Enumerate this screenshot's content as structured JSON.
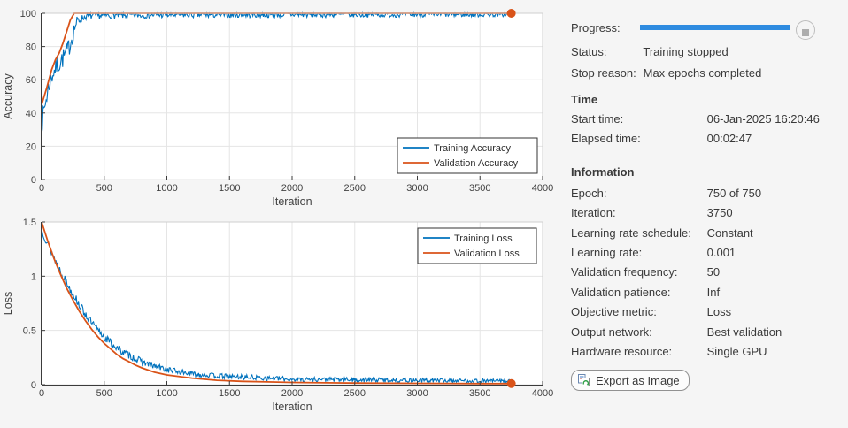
{
  "colors": {
    "matlab_blue": "#0072BD",
    "matlab_orange": "#D95319",
    "progress_blue": "#2E8BE0",
    "grid": "#e5e5e5",
    "axis_dark": "#3b3b3b",
    "axis_light": "#cfcfcf",
    "tick_text": "#424242"
  },
  "chart_data": [
    {
      "type": "line",
      "title": "",
      "xlabel": "Iteration",
      "ylabel": "Accuracy",
      "xlim": [
        0,
        4000
      ],
      "ylim": [
        0,
        100
      ],
      "xticks": [
        0,
        500,
        1000,
        1500,
        2000,
        2500,
        3000,
        3500,
        4000
      ],
      "yticks": [
        0,
        20,
        40,
        60,
        80,
        100
      ],
      "grid": true,
      "legend": {
        "position": "bottom-right",
        "entries": [
          "Training Accuracy",
          "Validation Accuracy"
        ]
      },
      "series": [
        {
          "name": "Training Accuracy",
          "color": "#0072BD",
          "style": "noisy",
          "end_marker": false,
          "points": [
            [
              0,
              33
            ],
            [
              30,
              46
            ],
            [
              60,
              57
            ],
            [
              90,
              64
            ],
            [
              120,
              68
            ],
            [
              150,
              71
            ],
            [
              180,
              74
            ],
            [
              210,
              78
            ],
            [
              240,
              85
            ],
            [
              270,
              93
            ],
            [
              300,
              96
            ],
            [
              350,
              98
            ],
            [
              400,
              98.5
            ],
            [
              500,
              98.6
            ],
            [
              700,
              98.8
            ],
            [
              1000,
              99
            ],
            [
              1500,
              99.1
            ],
            [
              2000,
              99.2
            ],
            [
              2500,
              99.2
            ],
            [
              3000,
              99.3
            ],
            [
              3500,
              99.3
            ],
            [
              3750,
              99.4
            ]
          ],
          "noise": [
            [
              0,
              6
            ],
            [
              240,
              6
            ],
            [
              330,
              2
            ],
            [
              3750,
              1.5
            ]
          ]
        },
        {
          "name": "Validation Accuracy",
          "color": "#D95319",
          "style": "smooth",
          "end_marker": true,
          "points": [
            [
              0,
              45
            ],
            [
              40,
              55
            ],
            [
              80,
              66
            ],
            [
              110,
              72
            ],
            [
              140,
              76
            ],
            [
              170,
              82
            ],
            [
              200,
              89
            ],
            [
              230,
              96
            ],
            [
              260,
              100
            ],
            [
              3750,
              100
            ]
          ]
        }
      ]
    },
    {
      "type": "line",
      "title": "",
      "xlabel": "Iteration",
      "ylabel": "Loss",
      "xlim": [
        0,
        4000
      ],
      "ylim": [
        0,
        1.5
      ],
      "xticks": [
        0,
        500,
        1000,
        1500,
        2000,
        2500,
        3000,
        3500,
        4000
      ],
      "yticks": [
        0,
        0.5,
        1,
        1.5
      ],
      "grid": true,
      "legend": {
        "position": "top-right",
        "entries": [
          "Training Loss",
          "Validation Loss"
        ]
      },
      "series": [
        {
          "name": "Training Loss",
          "color": "#0072BD",
          "style": "noisy",
          "end_marker": false,
          "points": [
            [
              0,
              1.43
            ],
            [
              50,
              1.3
            ],
            [
              100,
              1.17
            ],
            [
              150,
              1.05
            ],
            [
              200,
              0.94
            ],
            [
              250,
              0.84
            ],
            [
              300,
              0.74
            ],
            [
              350,
              0.65
            ],
            [
              400,
              0.57
            ],
            [
              450,
              0.5
            ],
            [
              500,
              0.44
            ],
            [
              550,
              0.39
            ],
            [
              600,
              0.34
            ],
            [
              650,
              0.3
            ],
            [
              700,
              0.27
            ],
            [
              750,
              0.24
            ],
            [
              800,
              0.21
            ],
            [
              900,
              0.17
            ],
            [
              1000,
              0.14
            ],
            [
              1100,
              0.12
            ],
            [
              1200,
              0.1
            ],
            [
              1400,
              0.08
            ],
            [
              1600,
              0.07
            ],
            [
              1800,
              0.06
            ],
            [
              2000,
              0.05
            ],
            [
              2500,
              0.045
            ],
            [
              3000,
              0.04
            ],
            [
              3500,
              0.035
            ],
            [
              3750,
              0.035
            ]
          ],
          "noise": [
            [
              0,
              0.04
            ],
            [
              600,
              0.035
            ],
            [
              1200,
              0.025
            ],
            [
              3750,
              0.018
            ]
          ]
        },
        {
          "name": "Validation Loss",
          "color": "#D95319",
          "style": "smooth",
          "end_marker": true,
          "points": [
            [
              0,
              1.5
            ],
            [
              50,
              1.32
            ],
            [
              100,
              1.16
            ],
            [
              150,
              1.02
            ],
            [
              200,
              0.89
            ],
            [
              250,
              0.78
            ],
            [
              300,
              0.68
            ],
            [
              350,
              0.59
            ],
            [
              400,
              0.51
            ],
            [
              450,
              0.44
            ],
            [
              500,
              0.38
            ],
            [
              550,
              0.33
            ],
            [
              600,
              0.28
            ],
            [
              650,
              0.24
            ],
            [
              700,
              0.21
            ],
            [
              750,
              0.18
            ],
            [
              800,
              0.155
            ],
            [
              900,
              0.115
            ],
            [
              1000,
              0.09
            ],
            [
              1200,
              0.06
            ],
            [
              1400,
              0.04
            ],
            [
              1600,
              0.03
            ],
            [
              1800,
              0.025
            ],
            [
              2000,
              0.02
            ],
            [
              2500,
              0.015
            ],
            [
              3000,
              0.012
            ],
            [
              3500,
              0.01
            ],
            [
              3750,
              0.01
            ]
          ]
        }
      ]
    }
  ],
  "panel": {
    "progress": {
      "label": "Progress:",
      "percent": 100
    },
    "status": {
      "label": "Status:",
      "value": "Training stopped"
    },
    "stop_reason": {
      "label": "Stop reason:",
      "value": "Max epochs completed"
    },
    "stop_button": {
      "icon": "stop-icon"
    },
    "time": {
      "header": "Time",
      "rows": [
        {
          "label": "Start time:",
          "value": "06-Jan-2025 16:20:46"
        },
        {
          "label": "Elapsed time:",
          "value": "00:02:47"
        }
      ]
    },
    "information": {
      "header": "Information",
      "rows": [
        {
          "label": "Epoch:",
          "value": "750 of 750"
        },
        {
          "label": "Iteration:",
          "value": "3750"
        },
        {
          "label": "Learning rate schedule:",
          "value": "Constant"
        },
        {
          "label": "Learning rate:",
          "value": "0.001"
        },
        {
          "label": "Validation frequency:",
          "value": "50"
        },
        {
          "label": "Validation patience:",
          "value": "Inf"
        },
        {
          "label": "Objective metric:",
          "value": "Loss"
        },
        {
          "label": "Output network:",
          "value": "Best validation"
        },
        {
          "label": "Hardware resource:",
          "value": "Single GPU"
        }
      ]
    },
    "export_button": {
      "label": "Export as Image",
      "icon": "export-image-icon"
    }
  }
}
